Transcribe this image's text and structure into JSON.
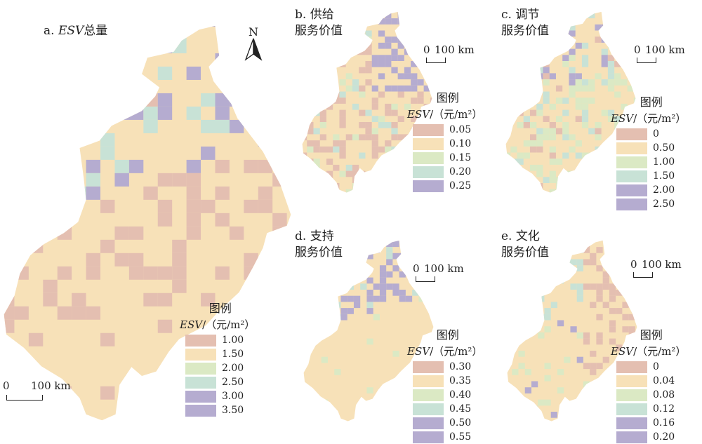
{
  "colors": [
    "#e4bfb1",
    "#f7e1b8",
    "#dbe9c4",
    "#c8e2d6",
    "#b5acd0"
  ],
  "scale_label": "100 km",
  "scale_zero": "0",
  "north_label": "N",
  "legend_title": "图例",
  "legend_unit_italic": "ESV",
  "legend_unit_rest": "/（元/m²）",
  "panels": {
    "a": {
      "prefix": "a. ",
      "title_italic": "ESV",
      "title_rest": "总量",
      "legend": [
        "1.00",
        "1.50",
        "2.00",
        "2.50",
        "3.00",
        "3.50"
      ]
    },
    "b": {
      "line1": "b. 供给",
      "line2": "服务价值",
      "legend": [
        "0.05",
        "0.10",
        "0.15",
        "0.20",
        "0.25"
      ]
    },
    "c": {
      "line1": "c. 调节",
      "line2": "服务价值",
      "legend": [
        "0",
        "0.50",
        "1.00",
        "1.50",
        "2.00",
        "2.50"
      ]
    },
    "d": {
      "line1": "d. 支持",
      "line2": "服务价值",
      "legend": [
        "0.30",
        "0.35",
        "0.40",
        "0.45",
        "0.50",
        "0.55"
      ]
    },
    "e": {
      "line1": "e. 文化",
      "line2": "服务价值",
      "legend": [
        "0",
        "0.04",
        "0.08",
        "0.12",
        "0.16",
        "0.20"
      ]
    }
  }
}
